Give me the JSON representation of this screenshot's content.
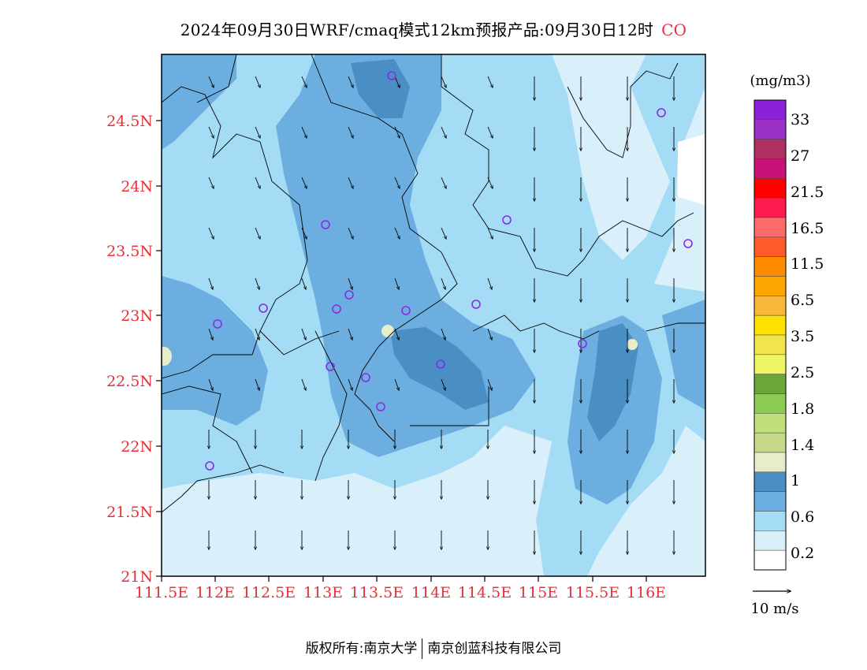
{
  "title": {
    "text": "2024年09月30日WRF/cmaq模式12km预报产品:09月30日12时",
    "species": "CO"
  },
  "map": {
    "lat_ticks": [
      "24.5N",
      "24N",
      "23.5N",
      "23N",
      "22.5N",
      "22N",
      "21.5N",
      "21N"
    ],
    "lon_ticks": [
      "111.5E",
      "112E",
      "112.5E",
      "113E",
      "113.5E",
      "114E",
      "114.5E",
      "115E",
      "115.5E",
      "116E"
    ],
    "tick_color": "#e8303a",
    "lon_range": [
      111.5,
      116.6
    ],
    "lat_range": [
      21,
      24.95
    ],
    "monitoring_station_color": "#8a2be2"
  },
  "legend": {
    "unit": "(mg/m3)",
    "labels": [
      "33",
      "27",
      "21.5",
      "16.5",
      "11.5",
      "6.5",
      "3.5",
      "2.5",
      "1.8",
      "1.4",
      "1",
      "0.6",
      "0.2"
    ],
    "colors_top_to_bottom": [
      "#8b22d8",
      "#9b30c8",
      "#ae2f60",
      "#c8127a",
      "#ff0000",
      "#ff1a4e",
      "#ff6a6a",
      "#ff5a2a",
      "#ff8c00",
      "#ffa500",
      "#f8b73b",
      "#ffe100",
      "#f2e54b",
      "#eef566",
      "#6aa73a",
      "#8ccc52",
      "#bfe07a",
      "#c4d98a",
      "#e6edc8",
      "#4a8fc4",
      "#6baedf",
      "#a4dcf6",
      "#d9f0fb",
      "#ffffff"
    ]
  },
  "wind_reference": {
    "label": "10 m/s"
  },
  "footer": {
    "left": "版权所有:南京大学",
    "right": "南京创蓝科技有限公司"
  }
}
